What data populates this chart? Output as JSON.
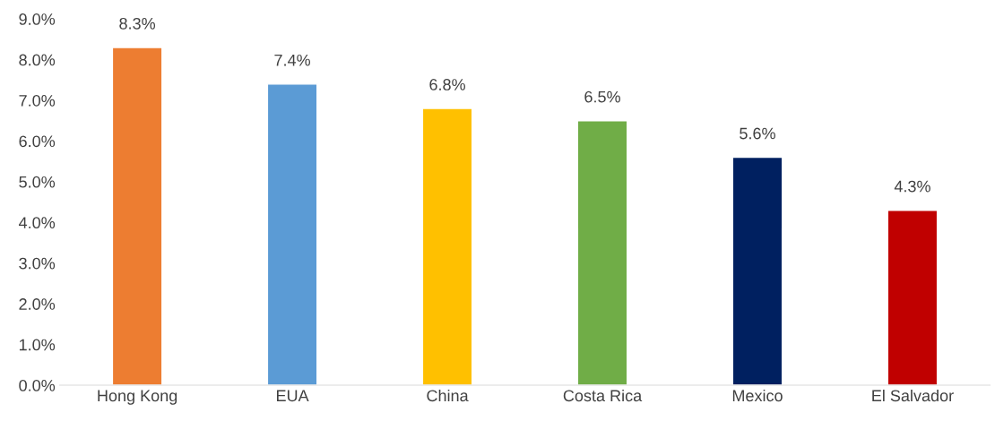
{
  "chart_data": {
    "type": "bar",
    "categories": [
      "Hong Kong",
      "EUA",
      "China",
      "Costa Rica",
      "Mexico",
      "El Salvador"
    ],
    "values": [
      8.3,
      7.4,
      6.8,
      6.5,
      5.6,
      4.3
    ],
    "colors": [
      "#ed7d31",
      "#5b9bd5",
      "#ffc000",
      "#70ad47",
      "#002060",
      "#c00000"
    ],
    "value_labels": [
      "8.3%",
      "7.4%",
      "6.8%",
      "6.5%",
      "5.6%",
      "4.3%"
    ],
    "ylim": [
      0,
      9
    ],
    "yticks": [
      {
        "value": 0,
        "label": "0.0%"
      },
      {
        "value": 1,
        "label": "1.0%"
      },
      {
        "value": 2,
        "label": "2.0%"
      },
      {
        "value": 3,
        "label": "3.0%"
      },
      {
        "value": 4,
        "label": "4.0%"
      },
      {
        "value": 5,
        "label": "5.0%"
      },
      {
        "value": 6,
        "label": "6.0%"
      },
      {
        "value": 7,
        "label": "7.0%"
      },
      {
        "value": 8,
        "label": "8.0%"
      },
      {
        "value": 9,
        "label": "9.0%"
      }
    ],
    "grid": false,
    "legend": false
  }
}
